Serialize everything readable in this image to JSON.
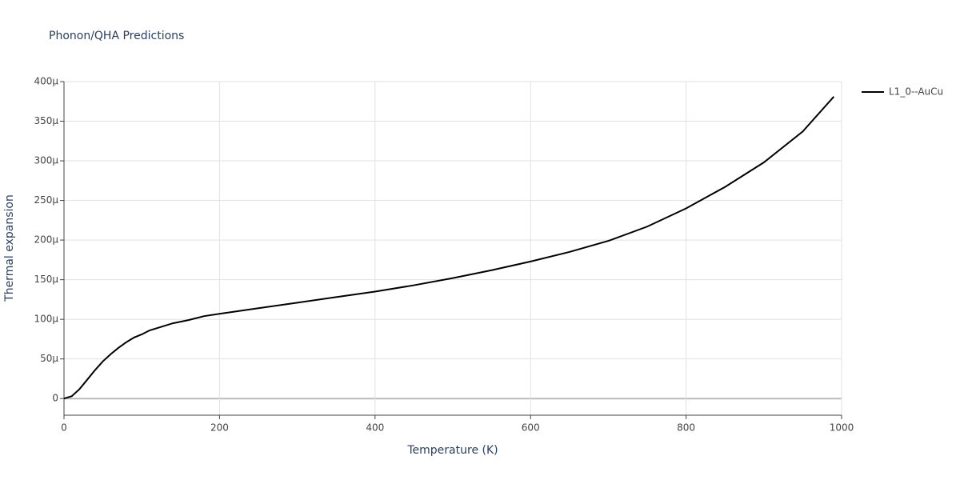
{
  "chart_data": {
    "type": "line",
    "title": "Phonon/QHA Predictions",
    "x_label": "Temperature (K)",
    "y_label": "Thermal expansion",
    "x": [
      0,
      10,
      20,
      30,
      40,
      50,
      60,
      70,
      80,
      90,
      100,
      110,
      120,
      140,
      160,
      180,
      200,
      250,
      300,
      350,
      400,
      450,
      500,
      550,
      600,
      650,
      700,
      750,
      800,
      850,
      900,
      950,
      990
    ],
    "series": [
      {
        "name": "L1_0--AuCu",
        "color": "#000000",
        "values": [
          0,
          3e-06,
          1.2e-05,
          2.4e-05,
          3.6e-05,
          4.7e-05,
          5.6e-05,
          6.4e-05,
          7.1e-05,
          7.7e-05,
          8.1e-05,
          8.6e-05,
          8.9e-05,
          9.5e-05,
          9.9e-05,
          0.000104,
          0.000107,
          0.000114,
          0.000121,
          0.000128,
          0.000135,
          0.000143,
          0.000152,
          0.000162,
          0.000173,
          0.000185,
          0.000199,
          0.000217,
          0.00024,
          0.000267,
          0.000298,
          0.000337,
          0.000381
        ]
      }
    ],
    "xlim": [
      0,
      1000
    ],
    "xticks": [
      0,
      200,
      400,
      600,
      800,
      1000
    ],
    "ylim": [
      -2.1e-05,
      0.0004
    ],
    "yticks": [
      0,
      {
        "value": 5e-05,
        "label": "50μ"
      },
      {
        "value": 0.0001,
        "label": "100μ"
      },
      {
        "value": 0.00015,
        "label": "150μ"
      },
      {
        "value": 0.0002,
        "label": "200μ"
      },
      {
        "value": 0.00025,
        "label": "250μ"
      },
      {
        "value": 0.0003,
        "label": "300μ"
      },
      {
        "value": 0.00035,
        "label": "350μ"
      },
      {
        "value": 0.0004,
        "label": "400μ"
      }
    ],
    "grid": true,
    "legend": "right"
  }
}
